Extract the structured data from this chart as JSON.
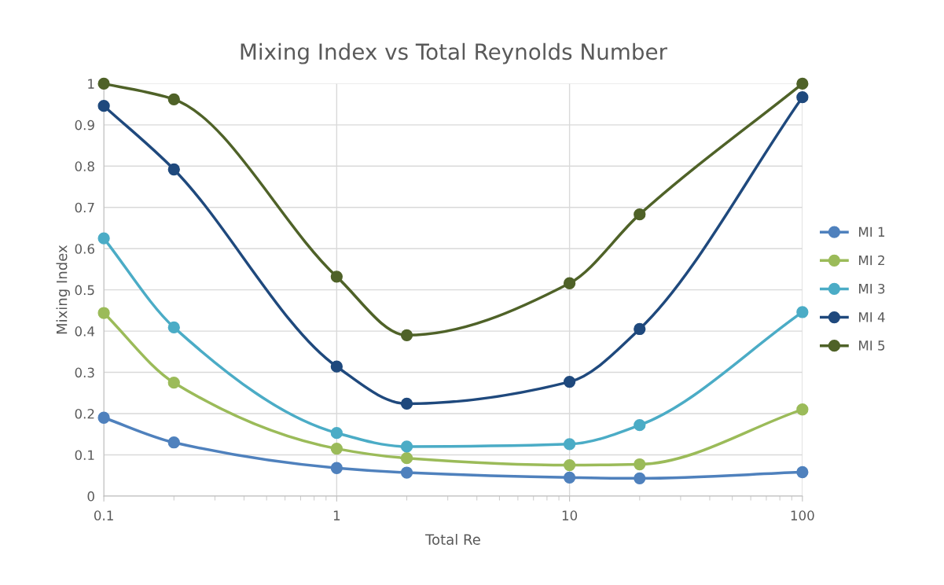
{
  "chart_data": {
    "type": "line",
    "title": "Mixing Index vs Total Reynolds Number",
    "xlabel": "Total Re",
    "ylabel": "Mixing Index",
    "x": [
      0.1,
      0.2,
      1,
      2,
      10,
      20,
      100
    ],
    "series": [
      {
        "name": "MI 1",
        "color": "#4f81bd",
        "values": [
          0.19,
          0.13,
          0.068,
          0.057,
          0.045,
          0.043,
          0.058
        ]
      },
      {
        "name": "MI 2",
        "color": "#9bbb59",
        "values": [
          0.444,
          0.275,
          0.115,
          0.092,
          0.075,
          0.077,
          0.21
        ]
      },
      {
        "name": "MI 3",
        "color": "#4bacc6",
        "values": [
          0.625,
          0.409,
          0.153,
          0.12,
          0.126,
          0.172,
          0.446
        ]
      },
      {
        "name": "MI 4",
        "color": "#1f497d",
        "values": [
          0.946,
          0.792,
          0.314,
          0.224,
          0.277,
          0.405,
          0.967
        ]
      },
      {
        "name": "MI 5",
        "color": "#4f6228",
        "values": [
          1.0,
          0.962,
          0.532,
          0.39,
          0.516,
          0.683,
          1.0
        ]
      }
    ],
    "log": "x",
    "xlim": [
      0.1,
      100
    ],
    "xticks": [
      0.1,
      1,
      10,
      100
    ],
    "ylim": [
      0,
      1
    ],
    "yticks": [
      0,
      0.1,
      0.2,
      0.3,
      0.4,
      0.5,
      0.6,
      0.7,
      0.8,
      0.9,
      1
    ],
    "grid": true,
    "legend": "right",
    "marker": "circle",
    "line_style": "solid"
  }
}
